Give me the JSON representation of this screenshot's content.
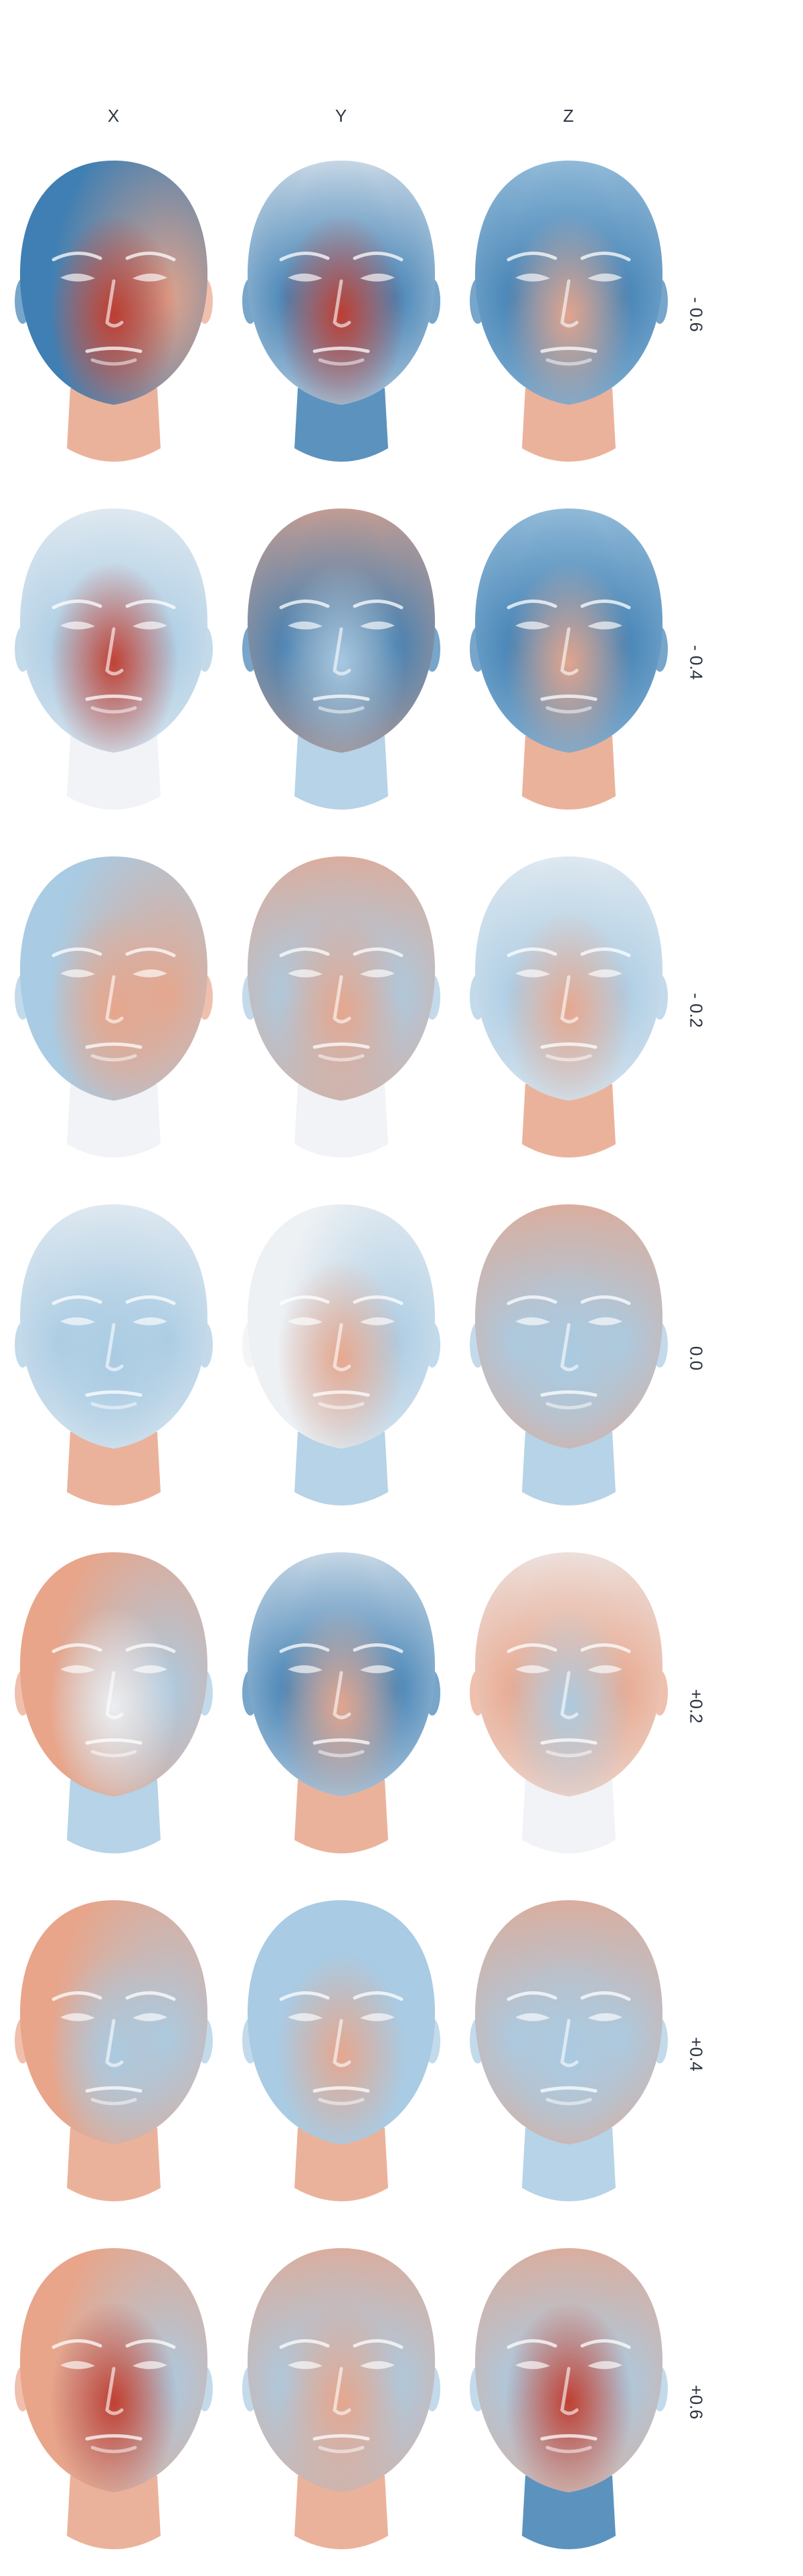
{
  "columns": [
    {
      "label": "X"
    },
    {
      "label": "Y"
    },
    {
      "label": "Z"
    }
  ],
  "rows": [
    {
      "label": "- 0.6"
    },
    {
      "label": "- 0.4"
    },
    {
      "label": "- 0.2"
    },
    {
      "label": "0.0"
    },
    {
      "label": "+0.2"
    },
    {
      "label": "+0.4"
    },
    {
      "label": "+0.6"
    }
  ],
  "palette": {
    "red": "#c0392b",
    "salmon": "#e8a58a",
    "neutral": "#eef1f4",
    "lightblue": "#a9cbe3",
    "blue": "#3f7fb3"
  },
  "faces": [
    [
      {
        "base": "blue",
        "left": "blue",
        "right": "salmon",
        "center": "red",
        "neck": "salmon"
      },
      {
        "base": "neutral",
        "left": "blue",
        "right": "blue",
        "center": "red",
        "neck": "blue"
      },
      {
        "base": "lightblue",
        "left": "blue",
        "right": "blue",
        "center": "salmon",
        "neck": "salmon"
      }
    ],
    [
      {
        "base": "neutral",
        "left": "lightblue",
        "right": "lightblue",
        "center": "red",
        "neck": "neutral"
      },
      {
        "base": "salmon",
        "left": "blue",
        "right": "blue",
        "center": "lightblue",
        "neck": "lightblue"
      },
      {
        "base": "lightblue",
        "left": "blue",
        "right": "blue",
        "center": "salmon",
        "neck": "salmon"
      }
    ],
    [
      {
        "base": "lightblue",
        "left": "lightblue",
        "right": "salmon",
        "center": "salmon",
        "neck": "neutral"
      },
      {
        "base": "salmon",
        "left": "lightblue",
        "right": "lightblue",
        "center": "salmon",
        "neck": "neutral"
      },
      {
        "base": "neutral",
        "left": "lightblue",
        "right": "lightblue",
        "center": "salmon",
        "neck": "salmon"
      }
    ],
    [
      {
        "base": "neutral",
        "left": "lightblue",
        "right": "lightblue",
        "center": "lightblue",
        "neck": "salmon"
      },
      {
        "base": "neutral",
        "left": "neutral",
        "right": "lightblue",
        "center": "salmon",
        "neck": "lightblue"
      },
      {
        "base": "salmon",
        "left": "lightblue",
        "right": "lightblue",
        "center": "lightblue",
        "neck": "lightblue"
      }
    ],
    [
      {
        "base": "salmon",
        "left": "salmon",
        "right": "lightblue",
        "center": "neutral",
        "neck": "lightblue"
      },
      {
        "base": "neutral",
        "left": "blue",
        "right": "blue",
        "center": "salmon",
        "neck": "salmon"
      },
      {
        "base": "neutral",
        "left": "salmon",
        "right": "salmon",
        "center": "lightblue",
        "neck": "neutral"
      }
    ],
    [
      {
        "base": "salmon",
        "left": "salmon",
        "right": "lightblue",
        "center": "lightblue",
        "neck": "salmon"
      },
      {
        "base": "lightblue",
        "left": "lightblue",
        "right": "lightblue",
        "center": "salmon",
        "neck": "salmon"
      },
      {
        "base": "salmon",
        "left": "lightblue",
        "right": "lightblue",
        "center": "lightblue",
        "neck": "lightblue"
      }
    ],
    [
      {
        "base": "salmon",
        "left": "salmon",
        "right": "lightblue",
        "center": "red",
        "neck": "salmon"
      },
      {
        "base": "salmon",
        "left": "lightblue",
        "right": "lightblue",
        "center": "salmon",
        "neck": "salmon"
      },
      {
        "base": "salmon",
        "left": "lightblue",
        "right": "lightblue",
        "center": "red",
        "neck": "blue"
      }
    ]
  ]
}
